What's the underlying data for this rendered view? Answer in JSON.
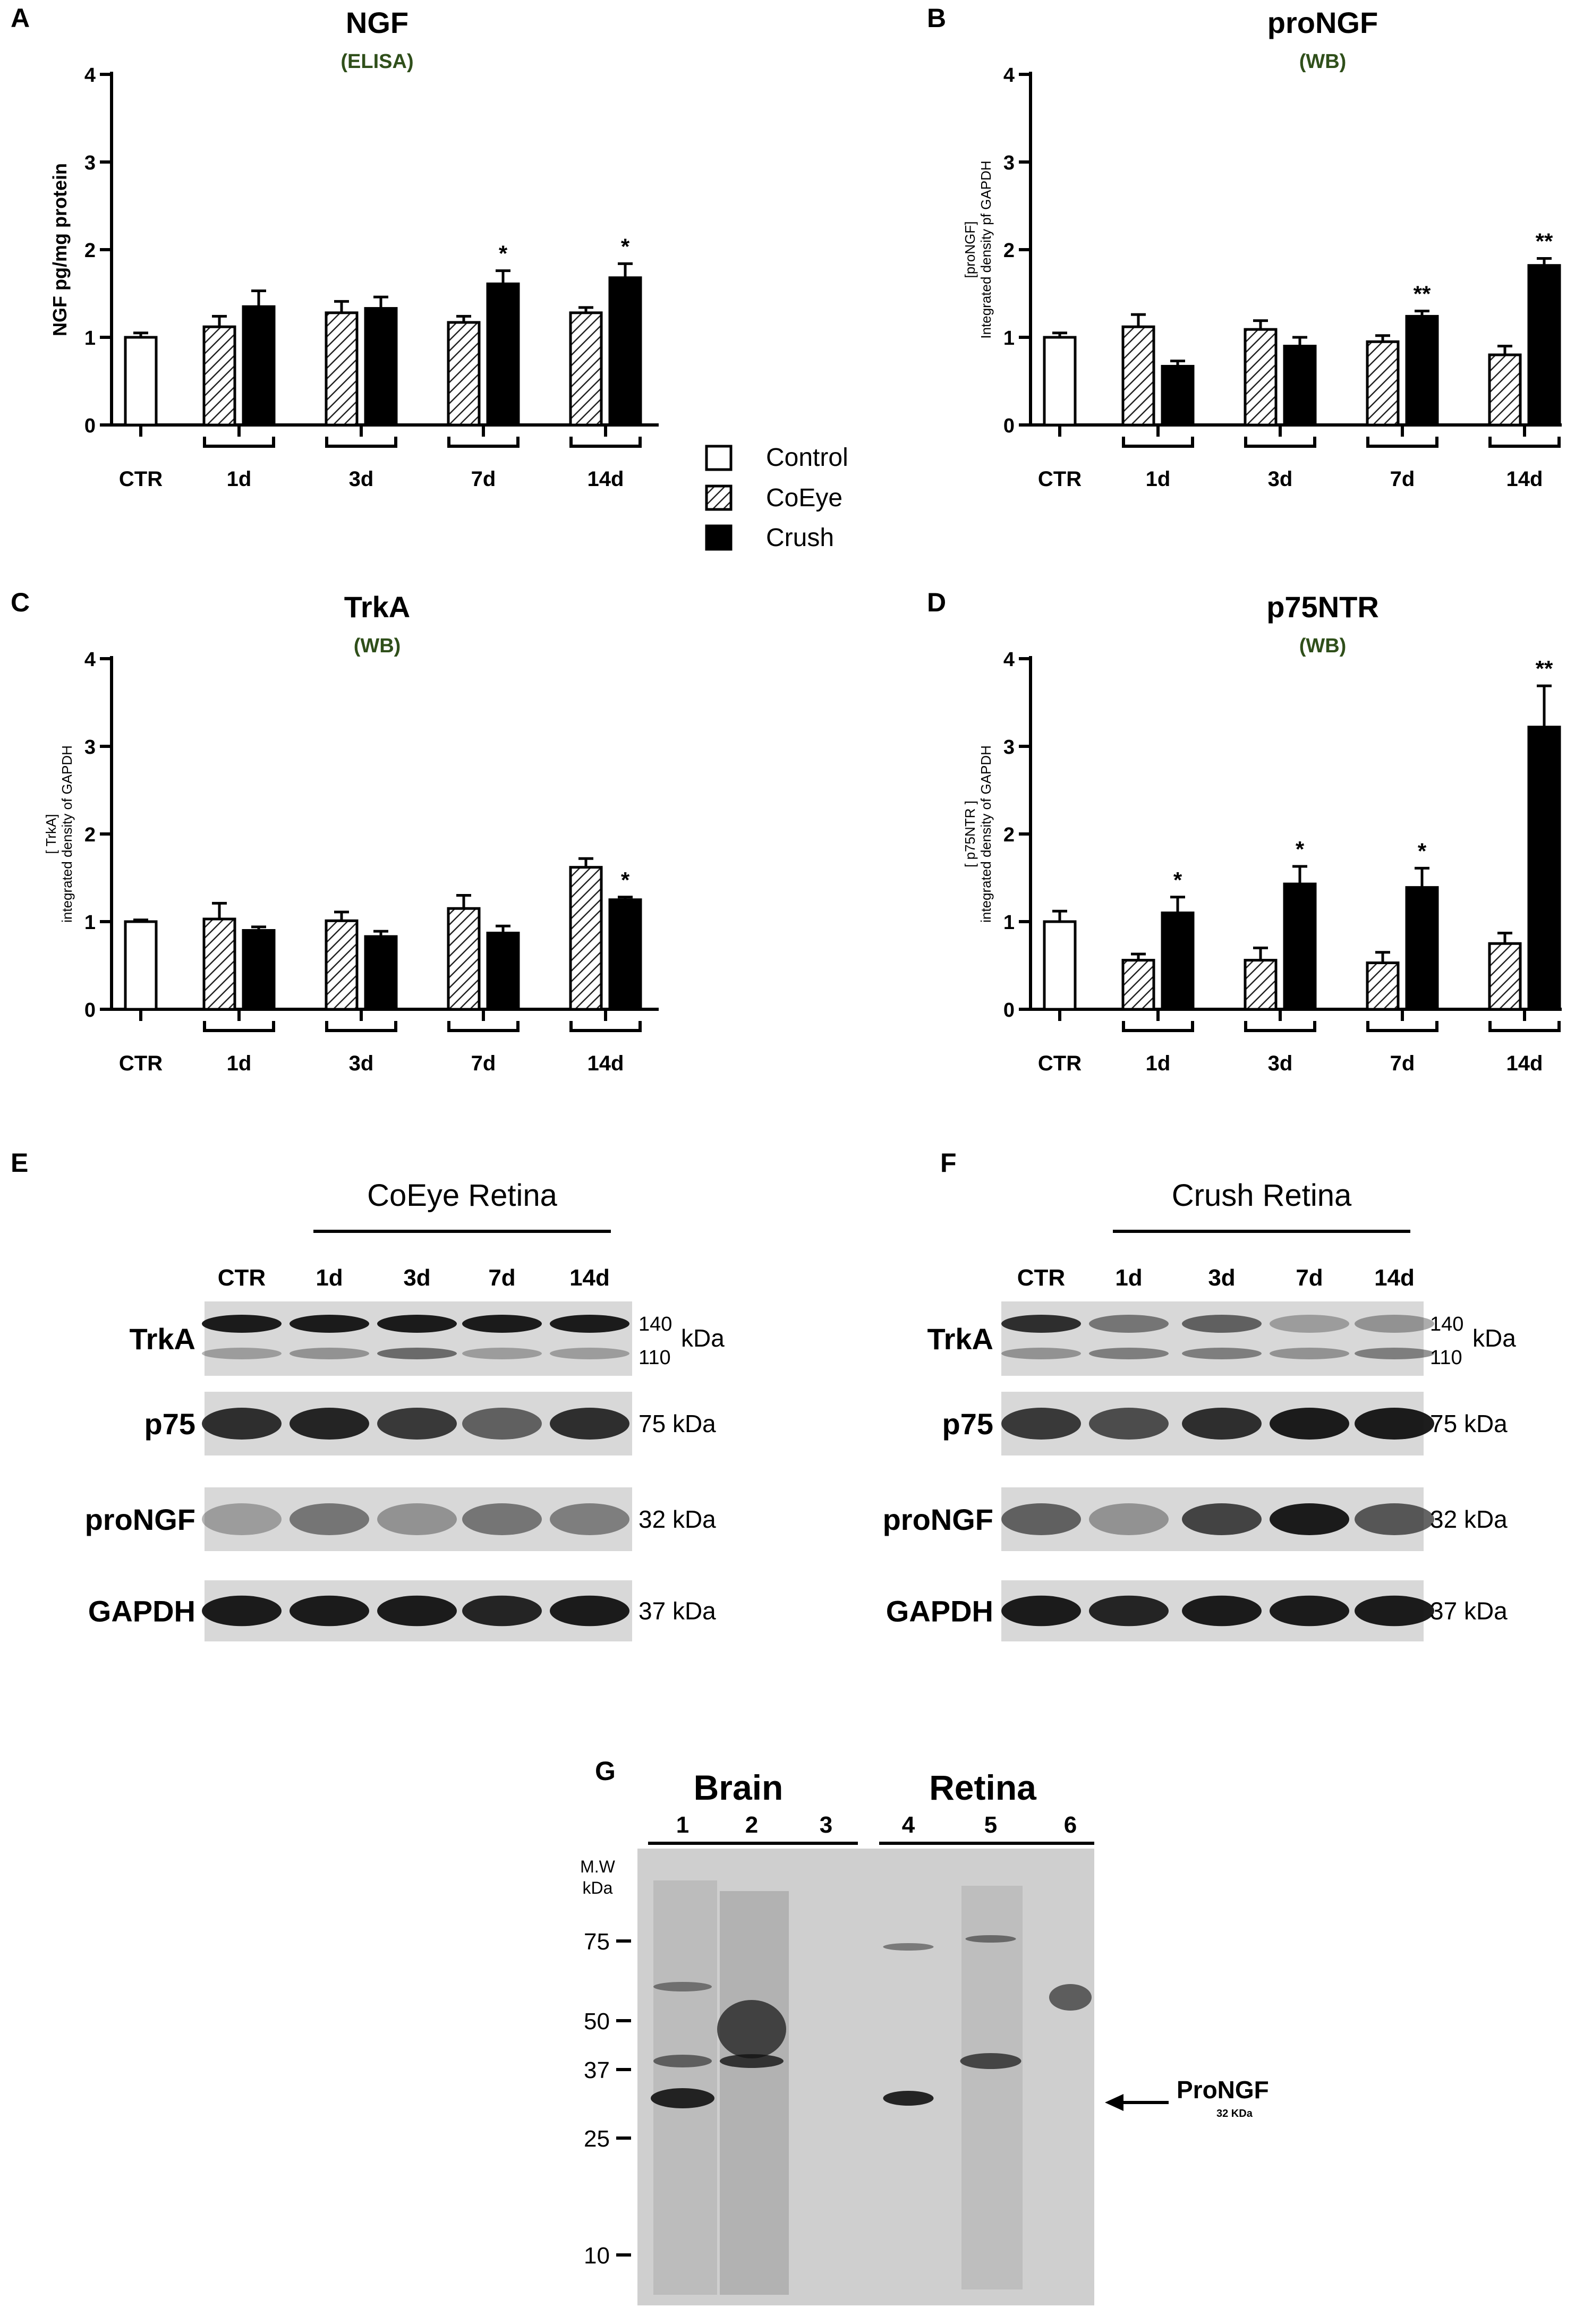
{
  "panels": {
    "a": "A",
    "b": "B",
    "c": "C",
    "d": "D",
    "e": "E",
    "f": "F",
    "g": "G"
  },
  "legend": {
    "items": [
      {
        "label": "Control",
        "style": "open"
      },
      {
        "label": "CoEye",
        "style": "hatched"
      },
      {
        "label": "Crush",
        "style": "filled"
      }
    ]
  },
  "chart_data": [
    {
      "type": "bar",
      "title": "NGF",
      "subtitle": "(ELISA)",
      "ylabel": "NGF pg/mg protein",
      "ylim": [
        0,
        4
      ],
      "yticks": [
        "0",
        "1",
        "2",
        "3",
        "4"
      ],
      "categories": [
        "CTR",
        "1d",
        "3d",
        "7d",
        "14d"
      ],
      "series": [
        {
          "name": "Control",
          "values": [
            1.0,
            null,
            null,
            null,
            null
          ],
          "errors": [
            0.05,
            null,
            null,
            null,
            null
          ]
        },
        {
          "name": "CoEye",
          "values": [
            null,
            1.12,
            1.28,
            1.17,
            1.28
          ],
          "errors": [
            null,
            0.12,
            0.13,
            0.07,
            0.06
          ]
        },
        {
          "name": "Crush",
          "values": [
            null,
            1.35,
            1.33,
            1.61,
            1.68
          ],
          "errors": [
            null,
            0.18,
            0.13,
            0.15,
            0.16
          ]
        }
      ],
      "significance": [
        null,
        null,
        null,
        "*",
        "*"
      ]
    },
    {
      "type": "bar",
      "title": "proNGF",
      "subtitle": "(WB)",
      "ylabel": "[proNGF]",
      "ylabel2": "Integrated density pf GAPDH",
      "ylim": [
        0,
        4
      ],
      "yticks": [
        "0",
        "1",
        "2",
        "3",
        "4"
      ],
      "categories": [
        "CTR",
        "1d",
        "3d",
        "7d",
        "14d"
      ],
      "series": [
        {
          "name": "Control",
          "values": [
            1.0,
            null,
            null,
            null,
            null
          ],
          "errors": [
            0.05,
            null,
            null,
            null,
            null
          ]
        },
        {
          "name": "CoEye",
          "values": [
            null,
            1.12,
            1.09,
            0.95,
            0.8
          ],
          "errors": [
            null,
            0.14,
            0.1,
            0.07,
            0.1
          ]
        },
        {
          "name": "Crush",
          "values": [
            null,
            0.67,
            0.9,
            1.24,
            1.82
          ],
          "errors": [
            null,
            0.06,
            0.1,
            0.06,
            0.08
          ]
        }
      ],
      "significance": [
        null,
        null,
        null,
        "**",
        "**"
      ]
    },
    {
      "type": "bar",
      "title": "TrkA",
      "subtitle": "(WB)",
      "ylabel": "[ TrkA]",
      "ylabel2": "integrated density of GAPDH",
      "ylim": [
        0,
        4
      ],
      "yticks": [
        "0",
        "1",
        "2",
        "3",
        "4"
      ],
      "categories": [
        "CTR",
        "1d",
        "3d",
        "7d",
        "14d"
      ],
      "series": [
        {
          "name": "Control",
          "values": [
            1.0,
            null,
            null,
            null,
            null
          ],
          "errors": [
            0.02,
            null,
            null,
            null,
            null
          ]
        },
        {
          "name": "CoEye",
          "values": [
            null,
            1.03,
            1.01,
            1.15,
            1.62
          ],
          "errors": [
            null,
            0.18,
            0.1,
            0.15,
            0.1
          ]
        },
        {
          "name": "Crush",
          "values": [
            null,
            0.9,
            0.83,
            0.87,
            1.25
          ],
          "errors": [
            null,
            0.04,
            0.06,
            0.08,
            0.03
          ]
        }
      ],
      "significance": [
        null,
        null,
        null,
        null,
        "*"
      ]
    },
    {
      "type": "bar",
      "title": "p75NTR",
      "subtitle": "(WB)",
      "ylabel": "[ p75NTR ]",
      "ylabel2": "integrated density of GAPDH",
      "ylim": [
        0,
        4
      ],
      "yticks": [
        "0",
        "1",
        "2",
        "3",
        "4"
      ],
      "categories": [
        "CTR",
        "1d",
        "3d",
        "7d",
        "14d"
      ],
      "series": [
        {
          "name": "Control",
          "values": [
            1.0,
            null,
            null,
            null,
            null
          ],
          "errors": [
            0.12,
            null,
            null,
            null,
            null
          ]
        },
        {
          "name": "CoEye",
          "values": [
            null,
            0.56,
            0.56,
            0.53,
            0.75
          ],
          "errors": [
            null,
            0.07,
            0.14,
            0.12,
            0.12
          ]
        },
        {
          "name": "Crush",
          "values": [
            null,
            1.1,
            1.43,
            1.39,
            3.22
          ],
          "errors": [
            null,
            0.18,
            0.2,
            0.22,
            0.47
          ]
        }
      ],
      "significance": [
        null,
        "*",
        "*",
        "*",
        "**"
      ]
    }
  ],
  "blots": {
    "e": {
      "header": "CoEye Retina",
      "lanes": [
        "CTR",
        "1d",
        "3d",
        "7d",
        "14d"
      ],
      "rows": [
        {
          "label": "TrkA",
          "mw_top": "140",
          "mw_bottom": "110",
          "unit": "kDa"
        },
        {
          "label": "p75",
          "mw": "75 kDa"
        },
        {
          "label": "proNGF",
          "mw": "32 kDa"
        },
        {
          "label": "GAPDH",
          "mw": "37 kDa"
        }
      ]
    },
    "f": {
      "header": "Crush Retina",
      "lanes": [
        "CTR",
        "1d",
        "3d",
        "7d",
        "14d"
      ],
      "rows": [
        {
          "label": "TrkA",
          "mw_top": "140",
          "mw_bottom": "110",
          "unit": "kDa"
        },
        {
          "label": "p75",
          "mw": "75 kDa"
        },
        {
          "label": "proNGF",
          "mw": "32 kDa"
        },
        {
          "label": "GAPDH",
          "mw": "37 kDa"
        }
      ]
    },
    "g": {
      "group1": "Brain",
      "group2": "Retina",
      "lanes": [
        "1",
        "2",
        "3",
        "4",
        "5",
        "6"
      ],
      "mw_header": "M.W",
      "mw_unit": "kDa",
      "markers": [
        "75",
        "50",
        "37",
        "25",
        "10"
      ],
      "arrow_label": "ProNGF",
      "arrow_sub": "32 KDa"
    }
  }
}
